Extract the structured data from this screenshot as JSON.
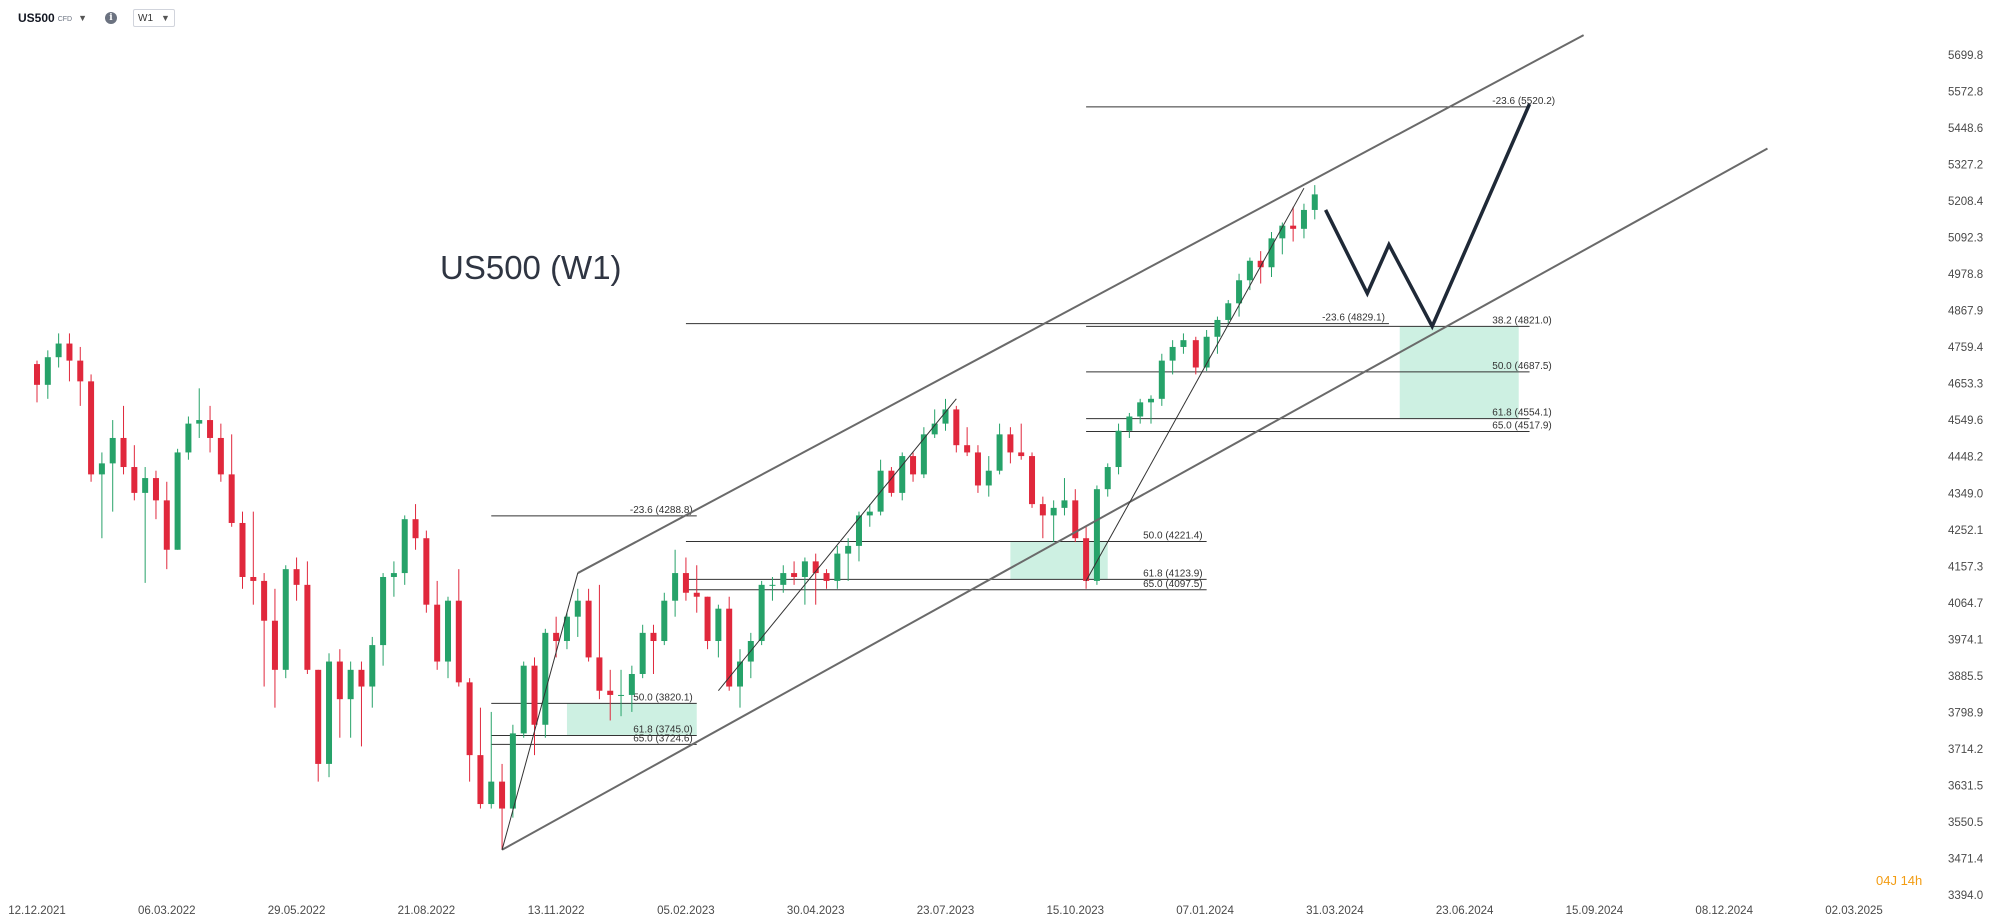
{
  "toolbar": {
    "symbol": "US500",
    "symbol_type": "CFD",
    "info_icon": "info-icon",
    "timeframe": "W1",
    "dropdown_icon": "caret-down-icon"
  },
  "chart_data": {
    "type": "candlestick",
    "title": "US500 (W1)",
    "xlabel": "",
    "ylabel": "",
    "ylim": [
      3400,
      5770
    ],
    "grid": false,
    "colors": {
      "up": "#26a269",
      "down": "#e0283c",
      "zone": "#b8ead6",
      "level": "#333333",
      "channel": "#6a6a6a",
      "projection": "#1f2937",
      "timer": "#f39c12"
    },
    "price_ticks": [
      "5699.8",
      "5572.8",
      "5448.6",
      "5327.2",
      "5208.4",
      "5092.3",
      "4978.8",
      "4867.9",
      "4759.4",
      "4653.3",
      "4549.6",
      "4448.2",
      "4349.0",
      "4252.1",
      "4157.3",
      "4064.7",
      "3974.1",
      "3885.5",
      "3798.9",
      "3714.2",
      "3631.5",
      "3550.5",
      "3471.4",
      "3394.0"
    ],
    "date_ticks": [
      "12.12.2021",
      "06.03.2022",
      "29.05.2022",
      "21.08.2022",
      "13.11.2022",
      "05.02.2023",
      "30.04.2023",
      "23.07.2023",
      "15.10.2023",
      "07.01.2024",
      "31.03.2024",
      "23.06.2024",
      "15.09.2024",
      "08.12.2024",
      "02.03.2025"
    ],
    "date_start": "2021-12-12",
    "date_end": "2025-03-02",
    "candles": [
      [
        "2021-12-12",
        4710,
        4650,
        4720,
        4600
      ],
      [
        "2021-12-19",
        4650,
        4730,
        4750,
        4610
      ],
      [
        "2021-12-26",
        4730,
        4770,
        4800,
        4700
      ],
      [
        "2022-01-02",
        4770,
        4720,
        4800,
        4660
      ],
      [
        "2022-01-09",
        4720,
        4660,
        4760,
        4590
      ],
      [
        "2022-01-16",
        4660,
        4400,
        4680,
        4380
      ],
      [
        "2022-01-23",
        4400,
        4430,
        4460,
        4230
      ],
      [
        "2022-01-30",
        4430,
        4500,
        4550,
        4300
      ],
      [
        "2022-02-06",
        4500,
        4420,
        4590,
        4400
      ],
      [
        "2022-02-13",
        4420,
        4350,
        4480,
        4330
      ],
      [
        "2022-02-20",
        4350,
        4390,
        4420,
        4115
      ],
      [
        "2022-02-27",
        4390,
        4330,
        4410,
        4280
      ],
      [
        "2022-03-06",
        4330,
        4200,
        4380,
        4150
      ],
      [
        "2022-03-13",
        4200,
        4460,
        4470,
        4200
      ],
      [
        "2022-03-20",
        4460,
        4540,
        4560,
        4440
      ],
      [
        "2022-03-27",
        4540,
        4550,
        4640,
        4500
      ],
      [
        "2022-04-03",
        4550,
        4500,
        4590,
        4460
      ],
      [
        "2022-04-10",
        4500,
        4400,
        4540,
        4380
      ],
      [
        "2022-04-17",
        4400,
        4270,
        4510,
        4260
      ],
      [
        "2022-04-24",
        4270,
        4130,
        4300,
        4100
      ],
      [
        "2022-05-01",
        4130,
        4120,
        4300,
        4060
      ],
      [
        "2022-05-08",
        4120,
        4020,
        4140,
        3860
      ],
      [
        "2022-05-15",
        4020,
        3900,
        4100,
        3810
      ],
      [
        "2022-05-22",
        3900,
        4150,
        4160,
        3880
      ],
      [
        "2022-05-29",
        4150,
        4110,
        4180,
        4070
      ],
      [
        "2022-06-05",
        4110,
        3900,
        4170,
        3890
      ],
      [
        "2022-06-12",
        3900,
        3680,
        3900,
        3640
      ],
      [
        "2022-06-19",
        3680,
        3920,
        3940,
        3650
      ],
      [
        "2022-06-26",
        3920,
        3830,
        3950,
        3740
      ],
      [
        "2022-07-03",
        3830,
        3900,
        3920,
        3740
      ],
      [
        "2022-07-10",
        3900,
        3860,
        3920,
        3720
      ],
      [
        "2022-07-17",
        3860,
        3960,
        3980,
        3810
      ],
      [
        "2022-07-24",
        3960,
        4130,
        4140,
        3910
      ],
      [
        "2022-07-31",
        4130,
        4140,
        4170,
        4080
      ],
      [
        "2022-08-07",
        4140,
        4280,
        4290,
        4110
      ],
      [
        "2022-08-14",
        4280,
        4230,
        4320,
        4200
      ],
      [
        "2022-08-21",
        4230,
        4060,
        4250,
        4040
      ],
      [
        "2022-08-28",
        4060,
        3920,
        4120,
        3900
      ],
      [
        "2022-09-04",
        3920,
        4070,
        4080,
        3880
      ],
      [
        "2022-09-11",
        4070,
        3870,
        4150,
        3860
      ],
      [
        "2022-09-18",
        3870,
        3700,
        3880,
        3640
      ],
      [
        "2022-09-25",
        3700,
        3590,
        3810,
        3580
      ],
      [
        "2022-10-02",
        3590,
        3640,
        3800,
        3580
      ],
      [
        "2022-10-09",
        3640,
        3580,
        3680,
        3490
      ],
      [
        "2022-10-16",
        3580,
        3750,
        3770,
        3560
      ],
      [
        "2022-10-23",
        3750,
        3910,
        3920,
        3740
      ],
      [
        "2022-10-30",
        3910,
        3770,
        3930,
        3700
      ],
      [
        "2022-11-06",
        3770,
        3990,
        4000,
        3740
      ],
      [
        "2022-11-13",
        3990,
        3970,
        4030,
        3930
      ],
      [
        "2022-11-20",
        3970,
        4030,
        4040,
        3950
      ],
      [
        "2022-11-27",
        4030,
        4070,
        4100,
        3980
      ],
      [
        "2022-12-04",
        4070,
        3930,
        4100,
        3920
      ],
      [
        "2022-12-11",
        3930,
        3850,
        4110,
        3830
      ],
      [
        "2022-12-18",
        3850,
        3840,
        3900,
        3780
      ],
      [
        "2022-12-25",
        3840,
        3840,
        3900,
        3790
      ],
      [
        "2023-01-01",
        3840,
        3890,
        3910,
        3800
      ],
      [
        "2023-01-08",
        3890,
        3990,
        4010,
        3880
      ],
      [
        "2023-01-15",
        3990,
        3970,
        4010,
        3890
      ],
      [
        "2023-01-22",
        3970,
        4070,
        4090,
        3960
      ],
      [
        "2023-01-29",
        4070,
        4140,
        4200,
        4030
      ],
      [
        "2023-02-05",
        4140,
        4090,
        4180,
        4070
      ],
      [
        "2023-02-12",
        4090,
        4080,
        4160,
        4040
      ],
      [
        "2023-02-19",
        4080,
        3970,
        4080,
        3950
      ],
      [
        "2023-02-26",
        3970,
        4050,
        4060,
        3930
      ],
      [
        "2023-03-05",
        4050,
        3860,
        4080,
        3850
      ],
      [
        "2023-03-12",
        3860,
        3920,
        3950,
        3810
      ],
      [
        "2023-03-19",
        3920,
        3970,
        3990,
        3880
      ],
      [
        "2023-03-26",
        3970,
        4110,
        4120,
        3960
      ],
      [
        "2023-04-02",
        4110,
        4110,
        4130,
        4070
      ],
      [
        "2023-04-09",
        4110,
        4140,
        4160,
        4090
      ],
      [
        "2023-04-16",
        4140,
        4130,
        4170,
        4110
      ],
      [
        "2023-04-23",
        4130,
        4170,
        4180,
        4060
      ],
      [
        "2023-04-30",
        4170,
        4140,
        4190,
        4060
      ],
      [
        "2023-05-07",
        4140,
        4120,
        4150,
        4100
      ],
      [
        "2023-05-14",
        4120,
        4190,
        4210,
        4100
      ],
      [
        "2023-05-21",
        4190,
        4210,
        4230,
        4120
      ],
      [
        "2023-05-28",
        4210,
        4290,
        4300,
        4170
      ],
      [
        "2023-06-04",
        4290,
        4300,
        4320,
        4260
      ],
      [
        "2023-06-11",
        4300,
        4410,
        4440,
        4290
      ],
      [
        "2023-06-18",
        4410,
        4350,
        4420,
        4340
      ],
      [
        "2023-06-25",
        4350,
        4450,
        4460,
        4330
      ],
      [
        "2023-07-02",
        4450,
        4400,
        4460,
        4380
      ],
      [
        "2023-07-09",
        4400,
        4510,
        4530,
        4390
      ],
      [
        "2023-07-16",
        4510,
        4540,
        4580,
        4500
      ],
      [
        "2023-07-23",
        4540,
        4580,
        4610,
        4520
      ],
      [
        "2023-07-30",
        4580,
        4480,
        4590,
        4460
      ],
      [
        "2023-08-06",
        4480,
        4460,
        4530,
        4450
      ],
      [
        "2023-08-13",
        4460,
        4370,
        4480,
        4350
      ],
      [
        "2023-08-20",
        4370,
        4410,
        4450,
        4340
      ],
      [
        "2023-08-27",
        4410,
        4510,
        4540,
        4400
      ],
      [
        "2023-09-03",
        4510,
        4460,
        4530,
        4430
      ],
      [
        "2023-09-10",
        4460,
        4450,
        4540,
        4440
      ],
      [
        "2023-09-17",
        4450,
        4320,
        4460,
        4310
      ],
      [
        "2023-09-24",
        4320,
        4290,
        4340,
        4230
      ],
      [
        "2023-10-01",
        4290,
        4310,
        4330,
        4220
      ],
      [
        "2023-10-08",
        4310,
        4330,
        4390,
        4290
      ],
      [
        "2023-10-15",
        4330,
        4230,
        4360,
        4220
      ],
      [
        "2023-10-22",
        4230,
        4120,
        4260,
        4100
      ],
      [
        "2023-10-29",
        4120,
        4360,
        4370,
        4110
      ],
      [
        "2023-11-05",
        4360,
        4420,
        4430,
        4340
      ],
      [
        "2023-11-12",
        4420,
        4520,
        4540,
        4400
      ],
      [
        "2023-11-19",
        4520,
        4560,
        4570,
        4500
      ],
      [
        "2023-11-26",
        4560,
        4600,
        4610,
        4540
      ],
      [
        "2023-12-03",
        4600,
        4610,
        4620,
        4540
      ],
      [
        "2023-12-10",
        4610,
        4720,
        4740,
        4590
      ],
      [
        "2023-12-17",
        4720,
        4760,
        4780,
        4680
      ],
      [
        "2023-12-24",
        4760,
        4780,
        4800,
        4740
      ],
      [
        "2024-01-01",
        4780,
        4700,
        4790,
        4680
      ],
      [
        "2024-01-08",
        4700,
        4790,
        4810,
        4690
      ],
      [
        "2024-01-15",
        4790,
        4840,
        4850,
        4740
      ],
      [
        "2024-01-22",
        4840,
        4890,
        4900,
        4830
      ],
      [
        "2024-01-29",
        4890,
        4960,
        4980,
        4850
      ],
      [
        "2024-02-05",
        4960,
        5020,
        5030,
        4930
      ],
      [
        "2024-02-12",
        5020,
        5000,
        5050,
        4950
      ],
      [
        "2024-02-19",
        5000,
        5090,
        5110,
        4970
      ],
      [
        "2024-02-26",
        5090,
        5130,
        5140,
        5040
      ],
      [
        "2024-03-04",
        5130,
        5120,
        5190,
        5080
      ],
      [
        "2024-03-11",
        5120,
        5180,
        5200,
        5090
      ],
      [
        "2024-03-18",
        5180,
        5230,
        5260,
        5150
      ]
    ],
    "fib_levels": [
      {
        "label": "-23.6 (4288.8)",
        "value": 4288.8
      },
      {
        "label": "50.0 (3820.1)",
        "value": 3820.1
      },
      {
        "label": "61.8 (3745.0)",
        "value": 3745.0
      },
      {
        "label": "65.0 (3724.6)",
        "value": 3724.6
      },
      {
        "label": "-23.6 (4829.1)",
        "value": 4829.1
      },
      {
        "label": "50.0 (4221.4)",
        "value": 4221.4
      },
      {
        "label": "61.8 (4123.9)",
        "value": 4123.9
      },
      {
        "label": "65.0 (4097.5)",
        "value": 4097.5
      },
      {
        "label": "-23.6 (5520.2)",
        "value": 5520.2
      },
      {
        "label": "38.2 (4821.0)",
        "value": 4821.0
      },
      {
        "label": "50.0 (4687.5)",
        "value": 4687.5
      },
      {
        "label": "61.8 (4554.1)",
        "value": 4554.1
      },
      {
        "label": "65.0 (4517.9)",
        "value": 4517.9
      }
    ],
    "countdown": "04J 14h"
  }
}
